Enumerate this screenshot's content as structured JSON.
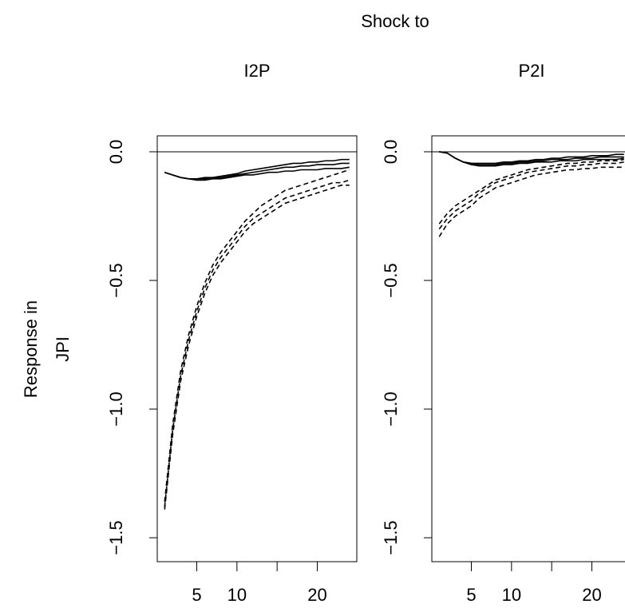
{
  "figure": {
    "title": "Shock to",
    "ylabel": [
      "Response in",
      "JPI"
    ]
  },
  "chart_data": [
    {
      "type": "line",
      "title": "I2P",
      "x": [
        1,
        2,
        3,
        4,
        5,
        6,
        7,
        8,
        9,
        10,
        11,
        12,
        13,
        14,
        15,
        16,
        17,
        18,
        19,
        20,
        21,
        22,
        23,
        24
      ],
      "xlim": [
        0.08,
        24.92
      ],
      "ylim": [
        -1.593,
        0.062
      ],
      "xticks": [
        5,
        10,
        {
          "value": 15,
          "label": null
        },
        20
      ],
      "yticks": [
        {
          "value": 0,
          "label": "0.0"
        },
        {
          "value": -0.5,
          "label": "−0.5"
        },
        {
          "value": -1,
          "label": "−1.0"
        },
        {
          "value": -1.5,
          "label": "−1.5"
        }
      ],
      "hline": 0,
      "series": [
        {
          "color": "#000000",
          "linestyle": "solid",
          "values": [
            -0.08,
            -0.09,
            -0.1,
            -0.105,
            -0.105,
            -0.105,
            -0.1,
            -0.1,
            -0.095,
            -0.09,
            -0.085,
            -0.08,
            -0.075,
            -0.07,
            -0.065,
            -0.06,
            -0.06,
            -0.055,
            -0.055,
            -0.05,
            -0.05,
            -0.05,
            -0.045,
            -0.045
          ]
        },
        {
          "color": "#000000",
          "linestyle": "solid",
          "values": [
            -0.08,
            -0.09,
            -0.1,
            -0.105,
            -0.105,
            -0.1,
            -0.1,
            -0.095,
            -0.09,
            -0.085,
            -0.075,
            -0.07,
            -0.065,
            -0.06,
            -0.055,
            -0.05,
            -0.045,
            -0.045,
            -0.04,
            -0.04,
            -0.035,
            -0.035,
            -0.03,
            -0.03
          ]
        },
        {
          "color": "#000000",
          "linestyle": "solid",
          "values": [
            -0.08,
            -0.09,
            -0.1,
            -0.105,
            -0.11,
            -0.11,
            -0.105,
            -0.105,
            -0.1,
            -0.095,
            -0.09,
            -0.09,
            -0.085,
            -0.08,
            -0.08,
            -0.075,
            -0.075,
            -0.07,
            -0.07,
            -0.07,
            -0.065,
            -0.065,
            -0.065,
            -0.06
          ]
        },
        {
          "color": "#000000",
          "linestyle": "dashed",
          "values": [
            -1.38,
            -1.08,
            -0.87,
            -0.73,
            -0.62,
            -0.53,
            -0.46,
            -0.41,
            -0.37,
            -0.33,
            -0.29,
            -0.26,
            -0.24,
            -0.22,
            -0.2,
            -0.18,
            -0.17,
            -0.16,
            -0.15,
            -0.14,
            -0.13,
            -0.12,
            -0.12,
            -0.11
          ]
        },
        {
          "color": "#000000",
          "linestyle": "dashed",
          "values": [
            -1.36,
            -1.06,
            -0.85,
            -0.71,
            -0.6,
            -0.51,
            -0.44,
            -0.39,
            -0.35,
            -0.31,
            -0.27,
            -0.24,
            -0.21,
            -0.19,
            -0.17,
            -0.15,
            -0.14,
            -0.13,
            -0.12,
            -0.11,
            -0.1,
            -0.09,
            -0.08,
            -0.07
          ]
        },
        {
          "color": "#000000",
          "linestyle": "dashed",
          "values": [
            -1.39,
            -1.1,
            -0.89,
            -0.75,
            -0.64,
            -0.55,
            -0.48,
            -0.43,
            -0.39,
            -0.35,
            -0.31,
            -0.28,
            -0.26,
            -0.24,
            -0.22,
            -0.2,
            -0.19,
            -0.18,
            -0.17,
            -0.16,
            -0.15,
            -0.14,
            -0.13,
            -0.13
          ]
        }
      ]
    },
    {
      "type": "line",
      "title": "P2I",
      "x": [
        1,
        2,
        3,
        4,
        5,
        6,
        7,
        8,
        9,
        10,
        11,
        12,
        13,
        14,
        15,
        16,
        17,
        18,
        19,
        20,
        21,
        22,
        23,
        24
      ],
      "xlim": [
        0.08,
        24.92
      ],
      "ylim": [
        -1.593,
        0.062
      ],
      "xticks": [
        5,
        10,
        {
          "value": 15,
          "label": null
        },
        20
      ],
      "yticks": [
        {
          "value": 0,
          "label": "0.0"
        },
        {
          "value": -0.5,
          "label": "−0.5"
        },
        {
          "value": -1,
          "label": "−1.0"
        },
        {
          "value": -1.5,
          "label": "−1.5"
        }
      ],
      "hline": 0,
      "series": [
        {
          "color": "#000000",
          "linestyle": "solid",
          "values": [
            0,
            -0.005,
            -0.025,
            -0.04,
            -0.045,
            -0.05,
            -0.05,
            -0.05,
            -0.045,
            -0.045,
            -0.04,
            -0.04,
            -0.035,
            -0.035,
            -0.03,
            -0.03,
            -0.03,
            -0.025,
            -0.025,
            -0.025,
            -0.02,
            -0.02,
            -0.02,
            -0.02
          ]
        },
        {
          "color": "#000000",
          "linestyle": "solid",
          "values": [
            0,
            -0.005,
            -0.025,
            -0.04,
            -0.045,
            -0.045,
            -0.045,
            -0.045,
            -0.04,
            -0.04,
            -0.035,
            -0.035,
            -0.03,
            -0.03,
            -0.025,
            -0.025,
            -0.02,
            -0.02,
            -0.02,
            -0.015,
            -0.015,
            -0.015,
            -0.01,
            -0.01
          ]
        },
        {
          "color": "#000000",
          "linestyle": "solid",
          "values": [
            0,
            -0.005,
            -0.025,
            -0.04,
            -0.05,
            -0.055,
            -0.055,
            -0.055,
            -0.05,
            -0.05,
            -0.045,
            -0.045,
            -0.04,
            -0.04,
            -0.04,
            -0.035,
            -0.035,
            -0.035,
            -0.03,
            -0.03,
            -0.03,
            -0.03,
            -0.03,
            -0.025
          ]
        },
        {
          "color": "#000000",
          "linestyle": "dashed",
          "values": [
            -0.3,
            -0.26,
            -0.23,
            -0.21,
            -0.19,
            -0.16,
            -0.14,
            -0.12,
            -0.11,
            -0.1,
            -0.09,
            -0.08,
            -0.075,
            -0.07,
            -0.065,
            -0.06,
            -0.055,
            -0.055,
            -0.05,
            -0.05,
            -0.045,
            -0.045,
            -0.045,
            -0.04
          ]
        },
        {
          "color": "#000000",
          "linestyle": "dashed",
          "values": [
            -0.28,
            -0.24,
            -0.21,
            -0.19,
            -0.17,
            -0.15,
            -0.13,
            -0.11,
            -0.1,
            -0.09,
            -0.08,
            -0.07,
            -0.065,
            -0.06,
            -0.055,
            -0.05,
            -0.045,
            -0.045,
            -0.04,
            -0.04,
            -0.035,
            -0.035,
            -0.035,
            -0.03
          ]
        },
        {
          "color": "#000000",
          "linestyle": "dashed",
          "values": [
            -0.33,
            -0.28,
            -0.25,
            -0.23,
            -0.21,
            -0.18,
            -0.16,
            -0.14,
            -0.13,
            -0.12,
            -0.11,
            -0.1,
            -0.09,
            -0.085,
            -0.08,
            -0.075,
            -0.07,
            -0.07,
            -0.065,
            -0.065,
            -0.06,
            -0.06,
            -0.06,
            -0.06
          ]
        }
      ]
    }
  ]
}
